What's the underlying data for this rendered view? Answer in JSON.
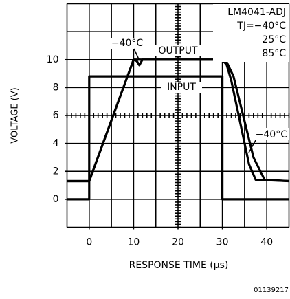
{
  "chart_data": {
    "type": "line",
    "xlabel": "RESPONSE TIME (μs)",
    "ylabel": "VOLTAGE (V)",
    "xlim": [
      -5,
      45
    ],
    "ylim": [
      -2,
      14
    ],
    "xticks": [
      0,
      10,
      20,
      30,
      40
    ],
    "xgrid": [
      -5,
      0,
      5,
      10,
      15,
      20,
      25,
      30,
      35,
      40,
      45
    ],
    "yticks": [
      0,
      2,
      4,
      6,
      8,
      10
    ],
    "ygrid": [
      -2,
      0,
      2,
      4,
      6,
      8,
      10,
      12,
      14
    ],
    "grid": true,
    "series": [
      {
        "color": "#000000",
        "x": [
          -5,
          0,
          0,
          30,
          30,
          45
        ],
        "values": [
          0,
          0,
          8.8,
          8.8,
          0,
          0
        ]
      },
      {
        "color": "#000000",
        "x": [
          -5,
          0,
          10,
          30,
          31,
          32,
          36,
          37.5,
          45
        ],
        "values": [
          1.3,
          1.3,
          10,
          10,
          9.6,
          8.5,
          2.5,
          1.4,
          1.3
        ]
      },
      {
        "color": "#000000",
        "x": [
          -5,
          0,
          10,
          10.7,
          11.3,
          12,
          30,
          31,
          32.5,
          37,
          39.5,
          45
        ],
        "values": [
          1.3,
          1.3,
          10,
          9.9,
          9.6,
          10,
          10,
          9.8,
          8.8,
          3,
          1.4,
          1.3
        ]
      }
    ],
    "annotations": [
      "LM4041-ADJ",
      "TJ=−40°C",
      "25°C",
      "85°C",
      "−40°C",
      "OUTPUT",
      "INPUT",
      "−40°C"
    ],
    "figure_id": "01139217"
  }
}
